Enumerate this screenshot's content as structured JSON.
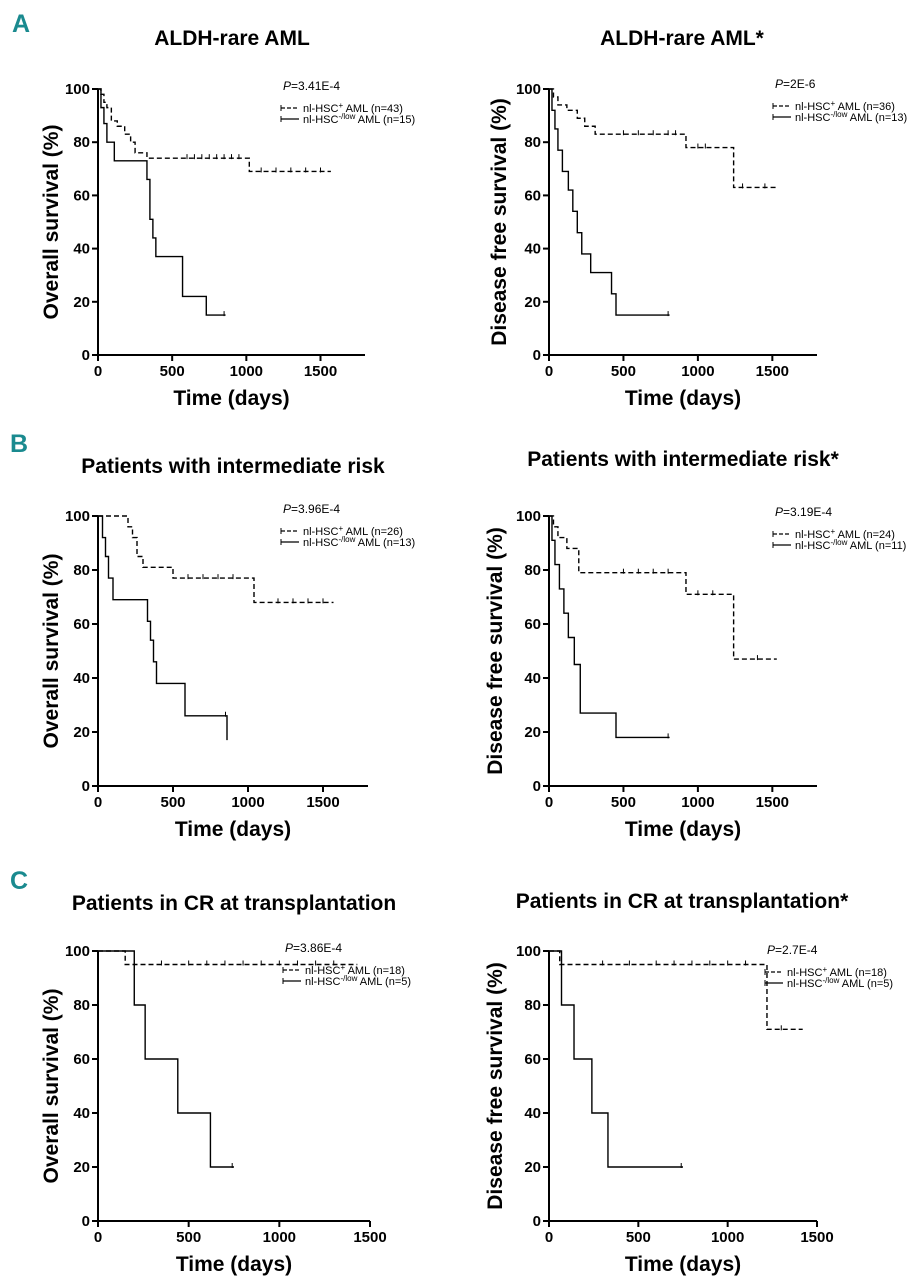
{
  "panel_letters": [
    "A",
    "B",
    "C"
  ],
  "colors": {
    "panel_letter": "#1a8a8f",
    "ink": "#000000"
  },
  "chart_data": [
    {
      "type": "line",
      "panel": "A",
      "title": "ALDH-rare AML",
      "xlabel": "Time (days)",
      "ylabel": "Overall survival (%)",
      "xlim": [
        0,
        1800
      ],
      "ylim": [
        0,
        100
      ],
      "xticks": [
        0,
        500,
        1000,
        1500
      ],
      "yticks": [
        0,
        20,
        40,
        60,
        80,
        100
      ],
      "p_value": {
        "prefix": "P",
        "text": "=3.41E-4"
      },
      "series": [
        {
          "name": "nl-HSC+ AML (n=43)",
          "legend": {
            "base": "nl-HSC",
            "sup": "+",
            "rest": " AML (n=43)"
          },
          "style": "dashed",
          "x": [
            0,
            20,
            40,
            60,
            90,
            130,
            180,
            220,
            250,
            330,
            450,
            1020,
            1570
          ],
          "y": [
            100,
            98,
            95,
            93,
            88,
            86,
            83,
            80,
            76,
            74,
            74,
            69,
            69
          ],
          "censor_x": [
            600,
            650,
            700,
            750,
            800,
            850,
            900,
            950,
            1100,
            1200,
            1300,
            1400,
            1500
          ]
        },
        {
          "name": "nl-HSC-/low AML (n=15)",
          "legend": {
            "base": "nl-HSC",
            "sup": "-/low",
            "rest": " AML (n=15)"
          },
          "style": "solid",
          "x": [
            0,
            20,
            40,
            60,
            110,
            330,
            350,
            370,
            390,
            570,
            730,
            860
          ],
          "y": [
            100,
            93,
            87,
            80,
            73,
            66,
            51,
            44,
            37,
            22,
            15,
            15
          ],
          "censor_x": [
            850
          ]
        }
      ]
    },
    {
      "type": "line",
      "panel": "A",
      "title": "ALDH-rare AML*",
      "xlabel": "Time (days)",
      "ylabel": "Disease free survival (%)",
      "xlim": [
        0,
        1800
      ],
      "ylim": [
        0,
        100
      ],
      "xticks": [
        0,
        500,
        1000,
        1500
      ],
      "yticks": [
        0,
        20,
        40,
        60,
        80,
        100
      ],
      "p_value": {
        "prefix": "P",
        "text": "=2E-6"
      },
      "series": [
        {
          "name": "nl-HSC+ AML (n=36)",
          "legend": {
            "base": "nl-HSC",
            "sup": "+",
            "rest": " AML (n=36)"
          },
          "style": "dashed",
          "x": [
            0,
            30,
            60,
            120,
            190,
            240,
            310,
            920,
            1240,
            1530
          ],
          "y": [
            100,
            97,
            94,
            92,
            89,
            86,
            83,
            78,
            63,
            63
          ],
          "censor_x": [
            500,
            600,
            700,
            800,
            850,
            1000,
            1050,
            1300,
            1450
          ]
        },
        {
          "name": "nl-HSC-/low AML (n=13)",
          "legend": {
            "base": "nl-HSC",
            "sup": "-/low",
            "rest": " AML (n=13)"
          },
          "style": "solid",
          "x": [
            0,
            20,
            40,
            60,
            90,
            130,
            160,
            190,
            220,
            280,
            420,
            450,
            810
          ],
          "y": [
            100,
            92,
            85,
            77,
            69,
            62,
            54,
            46,
            38,
            31,
            23,
            15,
            15
          ],
          "censor_x": [
            800
          ]
        }
      ]
    },
    {
      "type": "line",
      "panel": "B",
      "title": "Patients with intermediate risk",
      "xlabel": "Time (days)",
      "ylabel": "Overall survival (%)",
      "xlim": [
        0,
        1800
      ],
      "ylim": [
        0,
        100
      ],
      "xticks": [
        0,
        500,
        1000,
        1500
      ],
      "yticks": [
        0,
        20,
        40,
        60,
        80,
        100
      ],
      "p_value": {
        "prefix": "P",
        "text": "=3.96E-4"
      },
      "series": [
        {
          "name": "nl-HSC+ AML (n=26)",
          "legend": {
            "base": "nl-HSC",
            "sup": "+",
            "rest": " AML (n=26)"
          },
          "style": "dashed",
          "x": [
            0,
            200,
            230,
            260,
            300,
            500,
            1040,
            1570
          ],
          "y": [
            100,
            96,
            92,
            85,
            81,
            77,
            68,
            68
          ],
          "censor_x": [
            600,
            700,
            800,
            900,
            1200,
            1300,
            1400,
            1500
          ]
        },
        {
          "name": "nl-HSC-/low AML (n=13)",
          "legend": {
            "base": "nl-HSC",
            "sup": "-/low",
            "rest": " AML (n=13)"
          },
          "style": "solid",
          "x": [
            0,
            30,
            50,
            70,
            100,
            330,
            350,
            370,
            390,
            580,
            860
          ],
          "y": [
            100,
            92,
            85,
            77,
            69,
            61,
            54,
            46,
            38,
            26,
            17
          ],
          "censor_x": [
            850
          ]
        }
      ]
    },
    {
      "type": "line",
      "panel": "B",
      "title": "Patients with intermediate risk*",
      "xlabel": "Time (days)",
      "ylabel": "Disease free survival (%)",
      "xlim": [
        0,
        1800
      ],
      "ylim": [
        0,
        100
      ],
      "xticks": [
        0,
        500,
        1000,
        1500
      ],
      "yticks": [
        0,
        20,
        40,
        60,
        80,
        100
      ],
      "p_value": {
        "prefix": "P",
        "text": "=3.19E-4"
      },
      "series": [
        {
          "name": "nl-HSC+ AML (n=24)",
          "legend": {
            "base": "nl-HSC",
            "sup": "+",
            "rest": " AML (n=24)"
          },
          "style": "dashed",
          "x": [
            0,
            30,
            60,
            120,
            200,
            920,
            1240,
            1530
          ],
          "y": [
            100,
            96,
            92,
            88,
            79,
            71,
            47,
            47
          ],
          "censor_x": [
            500,
            600,
            700,
            800,
            1000,
            1100,
            1400
          ]
        },
        {
          "name": "nl-HSC-/low AML (n=11)",
          "legend": {
            "base": "nl-HSC",
            "sup": "-/low",
            "rest": " AML (n=11)"
          },
          "style": "solid",
          "x": [
            0,
            20,
            40,
            70,
            100,
            130,
            170,
            210,
            450,
            810
          ],
          "y": [
            100,
            91,
            82,
            73,
            64,
            55,
            45,
            27,
            18,
            18
          ],
          "censor_x": [
            800
          ]
        }
      ]
    },
    {
      "type": "line",
      "panel": "C",
      "title": "Patients in CR at transplantation",
      "xlabel": "Time (days)",
      "ylabel": "Overall survival (%)",
      "xlim": [
        0,
        1500
      ],
      "ylim": [
        0,
        100
      ],
      "xticks": [
        0,
        500,
        1000,
        1500
      ],
      "yticks": [
        0,
        20,
        40,
        60,
        80,
        100
      ],
      "p_value": {
        "prefix": "P",
        "text": "=3.86E-4"
      },
      "series": [
        {
          "name": "nl-HSC+ AML (n=18)",
          "legend": {
            "base": "nl-HSC",
            "sup": "+",
            "rest": " AML (n=18)"
          },
          "style": "dashed",
          "x": [
            0,
            150,
            1430
          ],
          "y": [
            100,
            95,
            95
          ],
          "censor_x": [
            350,
            500,
            600,
            700,
            800,
            900,
            1000,
            1100,
            1200,
            1300
          ]
        },
        {
          "name": "nl-HSC-/low AML (n=5)",
          "legend": {
            "base": "nl-HSC",
            "sup": "-/low",
            "rest": " AML (n=5)"
          },
          "style": "solid",
          "x": [
            0,
            200,
            260,
            440,
            620,
            750
          ],
          "y": [
            100,
            80,
            60,
            40,
            20,
            20
          ],
          "censor_x": [
            740
          ]
        }
      ]
    },
    {
      "type": "line",
      "panel": "C",
      "title": "Patients in CR at transplantation*",
      "xlabel": "Time (days)",
      "ylabel": "Disease free survival (%)",
      "xlim": [
        0,
        1500
      ],
      "ylim": [
        0,
        100
      ],
      "xticks": [
        0,
        500,
        1000,
        1500
      ],
      "yticks": [
        0,
        20,
        40,
        60,
        80,
        100
      ],
      "p_value": {
        "prefix": "P",
        "text": "=2.7E-4"
      },
      "series": [
        {
          "name": "nl-HSC+ AML (n=18)",
          "legend": {
            "base": "nl-HSC",
            "sup": "+",
            "rest": " AML (n=18)"
          },
          "style": "dashed",
          "x": [
            0,
            60,
            1220,
            1420
          ],
          "y": [
            100,
            95,
            71,
            71
          ],
          "censor_x": [
            300,
            450,
            600,
            700,
            800,
            900,
            1000,
            1100,
            1300
          ]
        },
        {
          "name": "nl-HSC-/low AML (n=5)",
          "legend": {
            "base": "nl-HSC",
            "sup": "-/low",
            "rest": " AML (n=5)"
          },
          "style": "solid",
          "x": [
            0,
            70,
            140,
            240,
            330,
            750
          ],
          "y": [
            100,
            80,
            60,
            40,
            20,
            20
          ],
          "censor_x": [
            740
          ]
        }
      ]
    }
  ]
}
